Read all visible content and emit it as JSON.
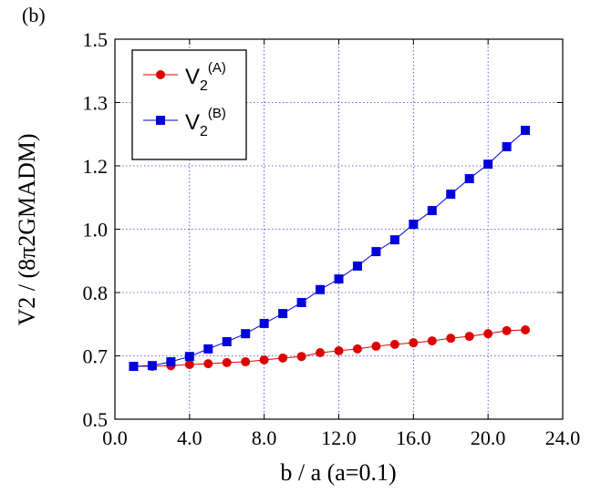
{
  "chart_data": {
    "type": "line",
    "panel_label": "(b)",
    "x_label": "b / a (a=0.1)",
    "y_label": "V2 / (8π2GMADM)",
    "x": [
      1,
      2,
      3,
      4,
      5,
      6,
      7,
      8,
      9,
      10,
      11,
      12,
      13,
      14,
      15,
      16,
      17,
      18,
      19,
      20,
      21,
      22
    ],
    "series": [
      {
        "name": "V2(A)",
        "color": "#dd0000",
        "marker": "circle",
        "values": [
          0.639,
          0.639,
          0.641,
          0.644,
          0.646,
          0.649,
          0.651,
          0.656,
          0.661,
          0.665,
          0.675,
          0.68,
          0.685,
          0.692,
          0.697,
          0.701,
          0.706,
          0.713,
          0.718,
          0.725,
          0.733,
          0.735
        ]
      },
      {
        "name": "V2(B)",
        "color": "#0000dd",
        "marker": "square",
        "values": [
          0.639,
          0.641,
          0.651,
          0.665,
          0.685,
          0.704,
          0.725,
          0.752,
          0.778,
          0.807,
          0.841,
          0.869,
          0.903,
          0.941,
          0.972,
          1.013,
          1.049,
          1.092,
          1.133,
          1.171,
          1.217,
          1.26
        ]
      }
    ],
    "xlim": [
      0,
      24
    ],
    "xticks": [
      {
        "value": 0,
        "label": "0.0"
      },
      {
        "value": 4,
        "label": "4.0"
      },
      {
        "value": 8,
        "label": "8.0"
      },
      {
        "value": 12,
        "label": "12.0"
      },
      {
        "value": 16,
        "label": "16.0"
      },
      {
        "value": 20,
        "label": "20.0"
      },
      {
        "value": 24,
        "label": "24.0"
      }
    ],
    "ylim": [
      0.5,
      1.5
    ],
    "yticks": [
      0.5,
      {
        "value": 0.6667,
        "label": "0.7"
      },
      {
        "value": 0.8333,
        "label": "0.8"
      },
      {
        "value": 1.0,
        "label": "1.0"
      },
      {
        "value": 1.1667,
        "label": "1.2"
      },
      {
        "value": 1.3333,
        "label": "1.3"
      },
      1.5
    ],
    "grid": true,
    "legend": "upper left"
  }
}
